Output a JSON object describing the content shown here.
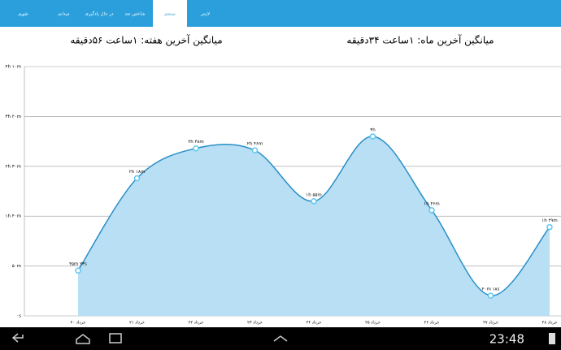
{
  "tabs": [
    "تقویم",
    "میدانم",
    "در حال یادگیری",
    "شاخص تعد",
    "سنجم",
    "لایتنر"
  ],
  "averages": {
    "week": "میانگین آخرین هفته: ۱ساعت ۵۶دقیقه",
    "month": "میانگین آخرین ماه: ۱ساعت ۳۴دقیقه"
  },
  "status_bar": {
    "time": "23:48"
  },
  "chart_data": {
    "type": "area",
    "color": "#2a8fc8",
    "fill": "#b8dff3",
    "grid": true,
    "categories": [
      "۲۰ خرداد",
      "۲۱ خرداد",
      "۲۲ خرداد",
      "۲۳ خرداد",
      "۲۴ خرداد",
      "۲۵ خرداد",
      "۲۶ خرداد",
      "۲۷ خرداد",
      "۲۸ خرداد"
    ],
    "values": [
      45.4,
      138,
      168,
      166,
      115,
      180,
      106,
      20.3,
      89
    ],
    "value_labels": [
      "۴۵m ۲۳s",
      "۲h ۱۸m",
      "۲h ۴۸m",
      "۲h ۴۶m",
      "۱h ۵۵m",
      "۳h",
      "۱h ۴۶m",
      "۲۰m ۱۸s",
      "۱h ۲۹m"
    ],
    "ylim": [
      0,
      250
    ],
    "yticks": [
      {
        "value": 0,
        "label": "۰s"
      },
      {
        "value": 50,
        "label": "۵۰m"
      },
      {
        "value": 100,
        "label": "۱h ۴۰m"
      },
      {
        "value": 150,
        "label": "۲h ۳۰m"
      },
      {
        "value": 200,
        "label": "۳h ۲۰m"
      },
      {
        "value": 250,
        "label": "۴h ۱۰m"
      }
    ]
  }
}
